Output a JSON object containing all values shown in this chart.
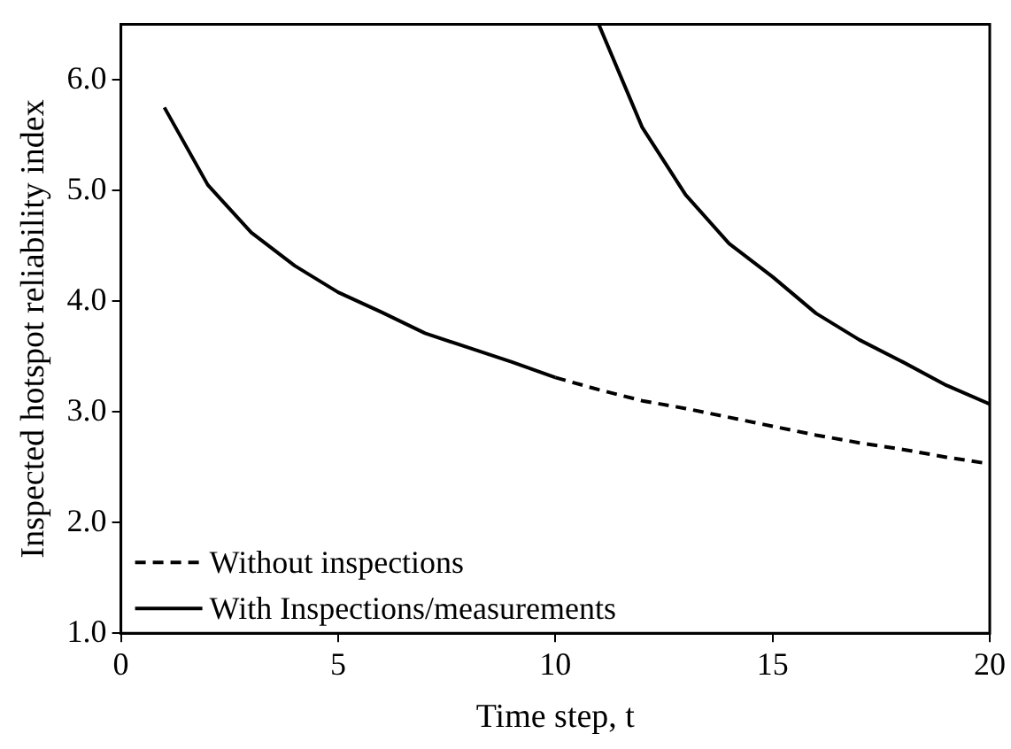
{
  "chart_data": {
    "type": "line",
    "xlabel": "Time step, t",
    "ylabel": "Inspected hotspot reliability index",
    "xlim": [
      0,
      20
    ],
    "xticks": [
      0,
      5,
      10,
      15,
      20
    ],
    "ylim": [
      1,
      6.5
    ],
    "yticks": [
      {
        "value": 1,
        "label": "1.0"
      },
      {
        "value": 2,
        "label": "2.0"
      },
      {
        "value": 3,
        "label": "3.0"
      },
      {
        "value": 4,
        "label": "4.0"
      },
      {
        "value": 5,
        "label": "5.0"
      },
      {
        "value": 6,
        "label": "6.0"
      }
    ],
    "grid": false,
    "legend": "bottom left",
    "marker": "none",
    "series": [
      {
        "name": "Without inspections",
        "color": "#000000",
        "line_style": "dashed",
        "x": [
          10,
          11,
          12,
          13,
          14,
          15,
          16,
          17,
          18,
          19,
          20
        ],
        "values": [
          3.31,
          3.2,
          3.1,
          3.03,
          2.95,
          2.87,
          2.79,
          2.72,
          2.66,
          2.59,
          2.53
        ]
      },
      {
        "name": "With Inspections/measurements",
        "color": "#000000",
        "line_style": "solid",
        "x": [
          1,
          2,
          3,
          4,
          5,
          6,
          7,
          8,
          9,
          10,
          10.5,
          11,
          12,
          13,
          14,
          15,
          16,
          17,
          18,
          19,
          20
        ],
        "values": [
          5.75,
          5.05,
          4.62,
          4.32,
          4.08,
          3.9,
          3.71,
          3.58,
          3.45,
          3.31,
          null,
          6.5,
          5.57,
          4.96,
          4.52,
          4.22,
          3.89,
          3.65,
          3.45,
          3.24,
          3.07
        ]
      }
    ]
  }
}
